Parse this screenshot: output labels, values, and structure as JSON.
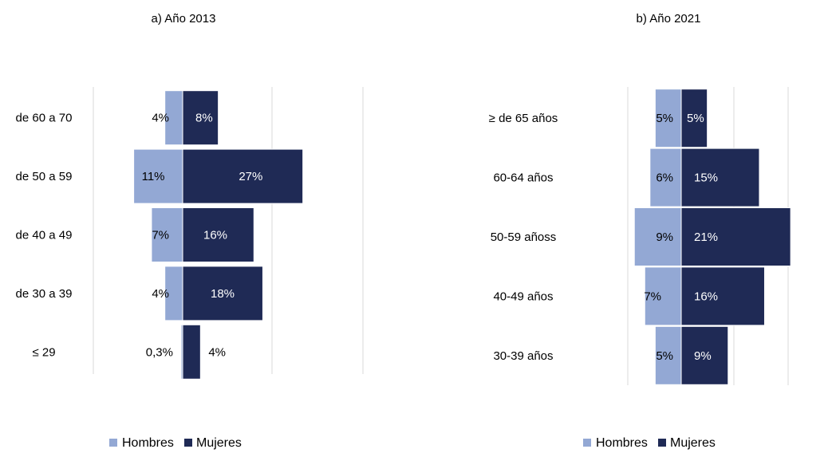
{
  "colors": {
    "hombres": "#93a8d4",
    "mujeres": "#1f2a55",
    "grid": "#d9d9d9",
    "text": "#000000",
    "label_on_dark": "#ffffff"
  },
  "chart_data": [
    {
      "type": "bar",
      "orientation": "horizontal-population-pyramid",
      "title": "a) Año 2013",
      "categories": [
        "de 60 a 70",
        "de 50 a 59",
        "de 40 a 49",
        "de 30 a 39",
        "≤ 29"
      ],
      "series": [
        {
          "name": "Hombres",
          "values": [
            4,
            11,
            7,
            4,
            0.3
          ],
          "labels": [
            "4%",
            "11%",
            "7%",
            "4%",
            "0,3%"
          ]
        },
        {
          "name": "Mujeres",
          "values": [
            8,
            27,
            16,
            18,
            4
          ],
          "labels": [
            "8%",
            "27%",
            "16%",
            "18%",
            "4%"
          ]
        }
      ],
      "legend": [
        "Hombres",
        "Mujeres"
      ],
      "legend_position": "bottom",
      "grid": true
    },
    {
      "type": "bar",
      "orientation": "horizontal-population-pyramid",
      "title": "b) Año 2021",
      "categories": [
        "≥ de 65 años",
        "60-64 años",
        "50-59 añoss",
        "40-49 años",
        "30-39 años"
      ],
      "series": [
        {
          "name": "Hombres",
          "values": [
            5,
            6,
            9,
            7,
            5
          ],
          "labels": [
            "5%",
            "6%",
            "9%",
            "7%",
            "5%"
          ]
        },
        {
          "name": "Mujeres",
          "values": [
            5,
            15,
            21,
            16,
            9
          ],
          "labels": [
            "5%",
            "15%",
            "21%",
            "16%",
            "9%"
          ]
        }
      ],
      "legend": [
        "Hombres",
        "Mujeres"
      ],
      "legend_position": "bottom",
      "grid": true
    }
  ]
}
